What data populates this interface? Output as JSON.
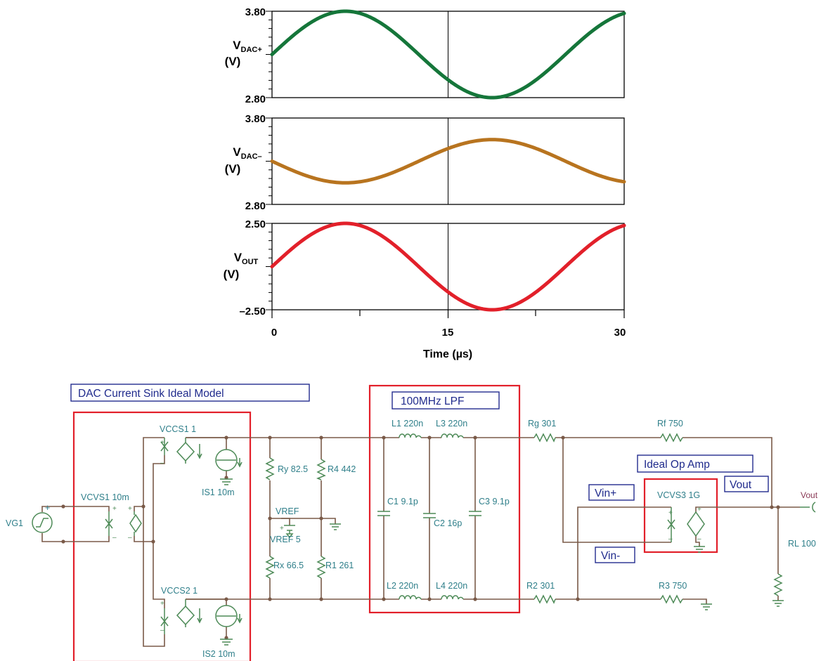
{
  "charts": [
    {
      "name": "vdac-plus",
      "ylabel_main": "V",
      "ylabel_sub": "DAC+",
      "ylabel_unit": "(V)",
      "ymin_label": "2.80",
      "ymax_label": "3.80",
      "ylim": [
        2.8,
        3.8
      ],
      "color": "#15763a",
      "offset": 3.3,
      "amplitude": 0.5,
      "phase_deg": 0
    },
    {
      "name": "vdac-minus",
      "ylabel_main": "V",
      "ylabel_sub": "DAC–",
      "ylabel_unit": "(V)",
      "ymin_label": "2.80",
      "ymax_label": "3.80",
      "ylim": [
        2.8,
        3.8
      ],
      "color": "#b8741f",
      "offset": 3.3,
      "amplitude": 0.25,
      "phase_deg": 180
    },
    {
      "name": "vout",
      "ylabel_main": "V",
      "ylabel_sub": "OUT",
      "ylabel_unit": "(V)",
      "ymin_label": "–2.50",
      "ymax_label": "2.50",
      "ylim": [
        -2.5,
        2.5
      ],
      "color": "#e2202a",
      "offset": 0,
      "amplitude": 2.5,
      "phase_deg": 0
    }
  ],
  "x_axis": {
    "label": "Time (µs)",
    "ticks": [
      "0",
      "15",
      "30"
    ],
    "xlim": [
      0,
      30
    ],
    "period_us": 25
  },
  "schematic": {
    "dac_title": "DAC Current Sink Ideal Model",
    "lpf_title": "100MHz LPF",
    "opamp_title": "Ideal Op Amp",
    "vin_plus": "Vin+",
    "vin_minus": "Vin-",
    "vout_box": "Vout",
    "vout_port": "Vout",
    "labels": {
      "vg1": "VG1",
      "vcvs1": "VCVS1 10m",
      "vccs1": "VCCS1 1",
      "is1": "IS1 10m",
      "vccs2": "VCCS2 1",
      "is2": "IS2 10m",
      "ry": "Ry 82.5",
      "r4": "R4 442",
      "vref": "VREF",
      "vref5": "VREF 5",
      "rx": "Rx 66.5",
      "r1": "R1 261",
      "l1": "L1 220n",
      "l3": "L3 220n",
      "c1": "C1 9.1p",
      "c3": "C3 9.1p",
      "c2": "C2 16p",
      "l2": "L2 220n",
      "l4": "L4 220n",
      "rg": "Rg 301",
      "rf": "Rf 750",
      "vcvs3": "VCVS3 1G",
      "rl": "RL 100",
      "r2": "R2 301",
      "r3": "R3 750"
    }
  }
}
